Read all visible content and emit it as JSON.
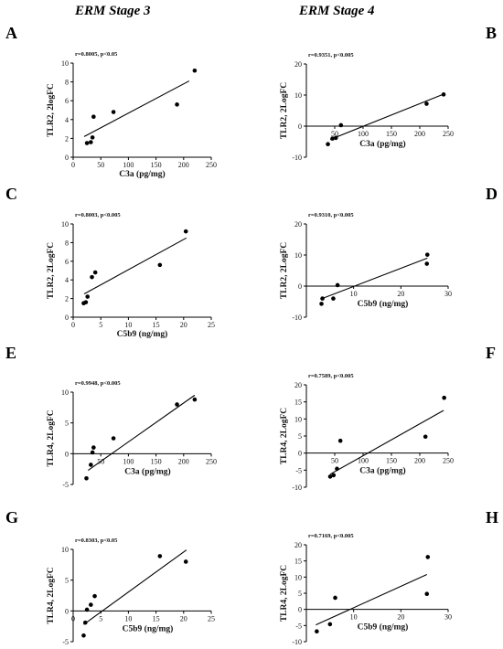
{
  "figure": {
    "col_titles": [
      "ERM Stage 3",
      "ERM Stage 4"
    ],
    "panel_letters": [
      "A",
      "B",
      "C",
      "D",
      "E",
      "F",
      "G",
      "H"
    ]
  },
  "chart_data": [
    {
      "panel": "A",
      "type": "scatter",
      "stat": "r=0.8005, p<0.05",
      "xlabel": "C3a (pg/mg)",
      "ylabel": "TLR2, 2logFC",
      "xlim": [
        0,
        250
      ],
      "ylim": [
        0,
        10
      ],
      "xticks": [
        0,
        50,
        100,
        150,
        200,
        250
      ],
      "yticks": [
        0,
        2,
        4,
        6,
        8,
        10
      ],
      "x": [
        25,
        32,
        35,
        37,
        73,
        188,
        220
      ],
      "y": [
        1.5,
        1.6,
        2.1,
        4.3,
        4.8,
        5.6,
        9.2
      ],
      "fit": [
        [
          20,
          2.2
        ],
        [
          210,
          8.1
        ]
      ],
      "grid": false,
      "zero_line": false
    },
    {
      "panel": "B",
      "type": "scatter",
      "stat": "r=0.9351, p<0.005",
      "xlabel": "C3a (pg/mg)",
      "ylabel": "TLR2, 2LogFC",
      "xlim": [
        0,
        250
      ],
      "ylim": [
        -10,
        20
      ],
      "xticks": [
        50,
        100,
        150,
        200,
        250
      ],
      "yticks": [
        -10,
        0,
        10,
        20
      ],
      "x": [
        38,
        46,
        52,
        61,
        212,
        242
      ],
      "y": [
        -5.8,
        -4,
        -3.8,
        0.3,
        7.2,
        10.2
      ],
      "fit": [
        [
          42,
          -4.3
        ],
        [
          242,
          10.3
        ]
      ],
      "grid": false,
      "zero_line": true
    },
    {
      "panel": "C",
      "type": "scatter",
      "stat": "r=0.8003, p<0.005",
      "xlabel": "C5b9 (ng/mg)",
      "ylabel": "TLR2, 2LogFC",
      "xlim": [
        0,
        25
      ],
      "ylim": [
        0,
        10
      ],
      "xticks": [
        0,
        5,
        10,
        15,
        20,
        25
      ],
      "yticks": [
        0,
        2,
        4,
        6,
        8,
        10
      ],
      "x": [
        1.9,
        2.3,
        2.6,
        3.4,
        4.0,
        15.7,
        20.4
      ],
      "y": [
        1.5,
        1.6,
        2.2,
        4.3,
        4.8,
        5.6,
        9.2
      ],
      "fit": [
        [
          2,
          2.5
        ],
        [
          20.5,
          8.5
        ]
      ],
      "grid": false,
      "zero_line": false
    },
    {
      "panel": "D",
      "type": "scatter",
      "stat": "r=0.9310, p<0.005",
      "xlabel": "C5b9 (ng/mg)",
      "ylabel": "TLR2, 2LogFC",
      "xlim": [
        0,
        30
      ],
      "ylim": [
        -10,
        20
      ],
      "xticks": [
        10,
        20,
        30
      ],
      "yticks": [
        -10,
        0,
        10,
        20
      ],
      "x": [
        3.2,
        3.4,
        5.7,
        6.6,
        25.5,
        25.6
      ],
      "y": [
        -5.7,
        -4,
        -4,
        0.3,
        7.2,
        10.1
      ],
      "fit": [
        [
          3,
          -4.2
        ],
        [
          25.6,
          9.0
        ]
      ],
      "grid": false,
      "zero_line": true
    },
    {
      "panel": "E",
      "type": "scatter",
      "stat": "r=0.9948, p<0.005",
      "xlabel": "C3a (pg/mg)",
      "ylabel": "TLR4, 2LogFC",
      "xlim": [
        0,
        250
      ],
      "ylim": [
        -5,
        10
      ],
      "xticks": [
        50,
        100,
        150,
        200,
        250
      ],
      "yticks": [
        -5,
        0,
        5,
        10
      ],
      "x": [
        24,
        32,
        35,
        37,
        73,
        188,
        220
      ],
      "y": [
        -4,
        -1.8,
        0.2,
        1,
        2.5,
        8,
        8.8
      ],
      "fit": [
        [
          27,
          -2.7
        ],
        [
          220,
          9.5
        ]
      ],
      "grid": false,
      "zero_line": true
    },
    {
      "panel": "F",
      "type": "scatter",
      "stat": "r=0.7589, p<0.005",
      "xlabel": "C3a (pg/mg)",
      "ylabel": "TLR4, 2LogFC",
      "xlim": [
        0,
        250
      ],
      "ylim": [
        -10,
        20
      ],
      "xticks": [
        50,
        100,
        150,
        200,
        250
      ],
      "yticks": [
        -10,
        -5,
        0,
        5,
        10,
        15,
        20
      ],
      "x": [
        42,
        48,
        54,
        60,
        210,
        243
      ],
      "y": [
        -6.9,
        -6.5,
        -4.6,
        3.6,
        4.8,
        16.2
      ],
      "fit": [
        [
          42,
          -6.2
        ],
        [
          242,
          12.5
        ]
      ],
      "grid": false,
      "zero_line": true
    },
    {
      "panel": "G",
      "type": "scatter",
      "stat": "r=0.8303, p<0.05",
      "xlabel": "C5b9 (ng/mg)",
      "ylabel": "TLR4, 2LogFC",
      "xlim": [
        0,
        25
      ],
      "ylim": [
        -5,
        10
      ],
      "xticks": [
        0,
        5,
        10,
        15,
        20,
        25
      ],
      "yticks": [
        -5,
        0,
        5,
        10
      ],
      "x": [
        1.9,
        2.2,
        2.5,
        3.2,
        3.9,
        15.7,
        20.4
      ],
      "y": [
        -4,
        -1.9,
        0.2,
        1,
        2.4,
        8.9,
        8.0
      ],
      "fit": [
        [
          1.9,
          -2.2
        ],
        [
          20.5,
          9.9
        ]
      ],
      "grid": false,
      "zero_line": true
    },
    {
      "panel": "H",
      "type": "scatter",
      "stat": "r=0.7169, p<0.005",
      "xlabel": "C5b9 (ng/mg)",
      "ylabel": "TLR4, 2LogFC",
      "xlim": [
        0,
        30
      ],
      "ylim": [
        -10,
        20
      ],
      "xticks": [
        10,
        20,
        30
      ],
      "yticks": [
        -10,
        -5,
        0,
        5,
        10,
        15,
        20
      ],
      "x": [
        2.2,
        5.0,
        6.1,
        25.5,
        25.7
      ],
      "y": [
        -6.8,
        -4.6,
        3.6,
        4.8,
        16.2
      ],
      "fit": [
        [
          2,
          -4.8
        ],
        [
          25.5,
          10.8
        ]
      ],
      "grid": false,
      "zero_line": true
    }
  ]
}
